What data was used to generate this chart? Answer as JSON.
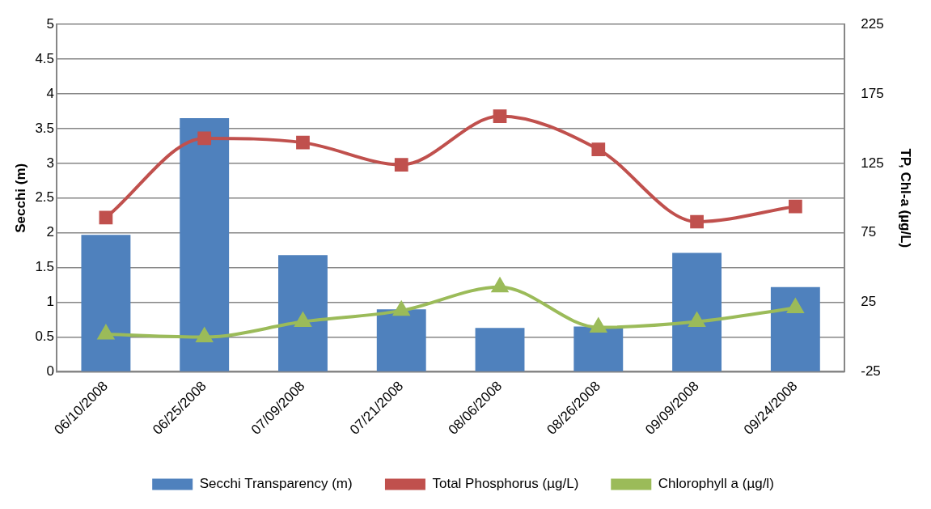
{
  "chart_data": {
    "type": "bar",
    "categories": [
      "06/10/2008",
      "06/25/2008",
      "07/09/2008",
      "07/21/2008",
      "08/06/2008",
      "08/26/2008",
      "09/09/2008",
      "09/24/2008"
    ],
    "series": [
      {
        "name": "Secchi Transparency (m)",
        "color": "#4f81bd",
        "values": [
          1.97,
          3.65,
          1.68,
          0.9,
          0.63,
          0.65,
          1.71,
          1.22
        ]
      },
      {
        "name": "Total Phosphorus (µg/L)",
        "type": "line",
        "axis": "y2",
        "marker": "square",
        "color": "#c0504d",
        "values": [
          86,
          143,
          140,
          124,
          159,
          135,
          83,
          94
        ]
      },
      {
        "name": "Chlorophyll a (µg/l)",
        "type": "line",
        "axis": "y2",
        "marker": "triangle",
        "color": "#9bbb59",
        "values": [
          2,
          0,
          11,
          19,
          36,
          7,
          11,
          21
        ]
      }
    ],
    "ylabel": "Secchi (m)",
    "y2label": "TP, Chl-a (µg/L)",
    "ylim": [
      0,
      5
    ],
    "yticks": [
      0,
      0.5,
      1,
      1.5,
      2,
      2.5,
      3,
      3.5,
      4,
      4.5,
      5
    ],
    "y2lim": [
      -25,
      225
    ],
    "y2ticks": [
      -25,
      25,
      75,
      125,
      175,
      225
    ],
    "grid": "y",
    "legend": "bottom",
    "line_style": "solid"
  }
}
